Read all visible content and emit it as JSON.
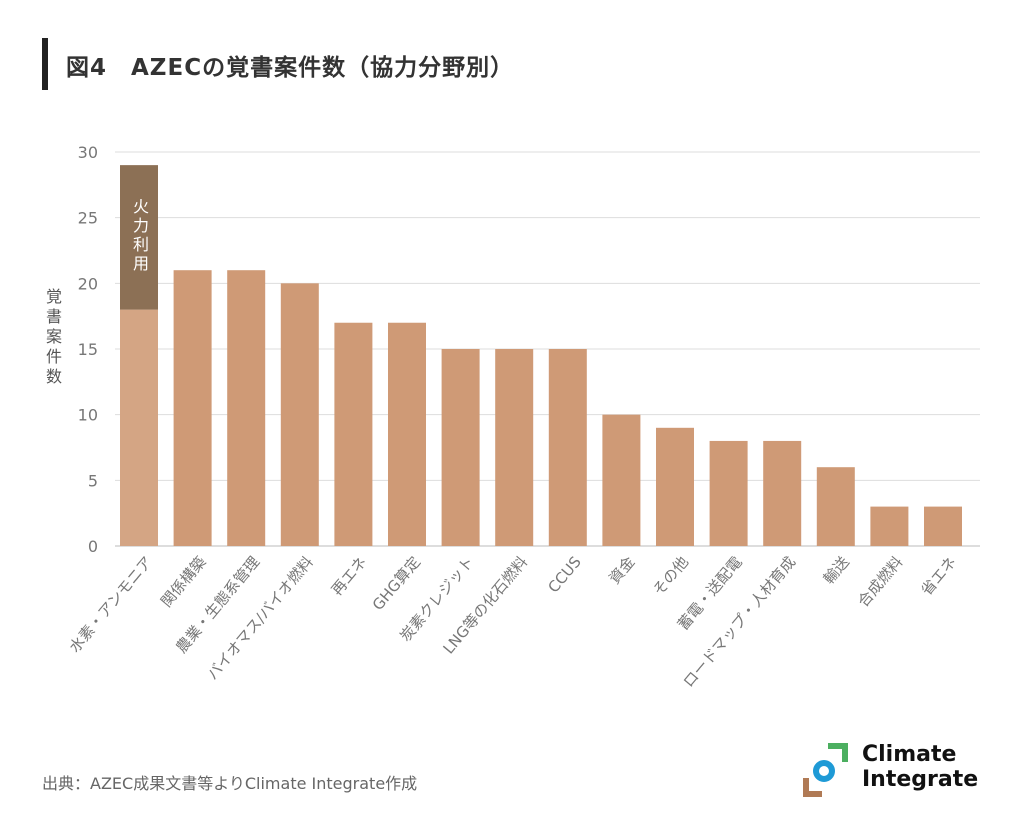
{
  "title": "図4　AZECの覚書案件数（協力分野別）",
  "source": "出典：AZEC成果文書等よりClimate Integrate作成",
  "logo": {
    "line1": "Climate",
    "line2": "Integrate"
  },
  "colors": {
    "bar": "#cf9a76",
    "stack_base": "#d4a584",
    "stack_top": "#8c7055",
    "grid": "#dddddd",
    "axis_text": "#777777"
  },
  "chart_data": {
    "type": "bar",
    "ylabel": "覚書案件数",
    "ylim": [
      0,
      30
    ],
    "yticks": [
      0,
      5,
      10,
      15,
      20,
      25,
      30
    ],
    "grid": true,
    "categories": [
      "水素・アンモニア",
      "関係構築",
      "農業・生態系管理",
      "バイオマス/バイオ燃料",
      "再エネ",
      "GHG算定",
      "炭素クレジット",
      "LNG等の化石燃料",
      "CCUS",
      "資金",
      "その他",
      "蓄電・送配電",
      "ロードマップ・人材育成",
      "輸送",
      "合成燃料",
      "省エネ"
    ],
    "values": [
      29,
      21,
      21,
      20,
      17,
      17,
      15,
      15,
      15,
      10,
      9,
      8,
      8,
      6,
      3,
      3
    ],
    "stack": {
      "category": "水素・アンモニア",
      "base": 18,
      "top": 11,
      "top_label": "火力利用"
    }
  }
}
